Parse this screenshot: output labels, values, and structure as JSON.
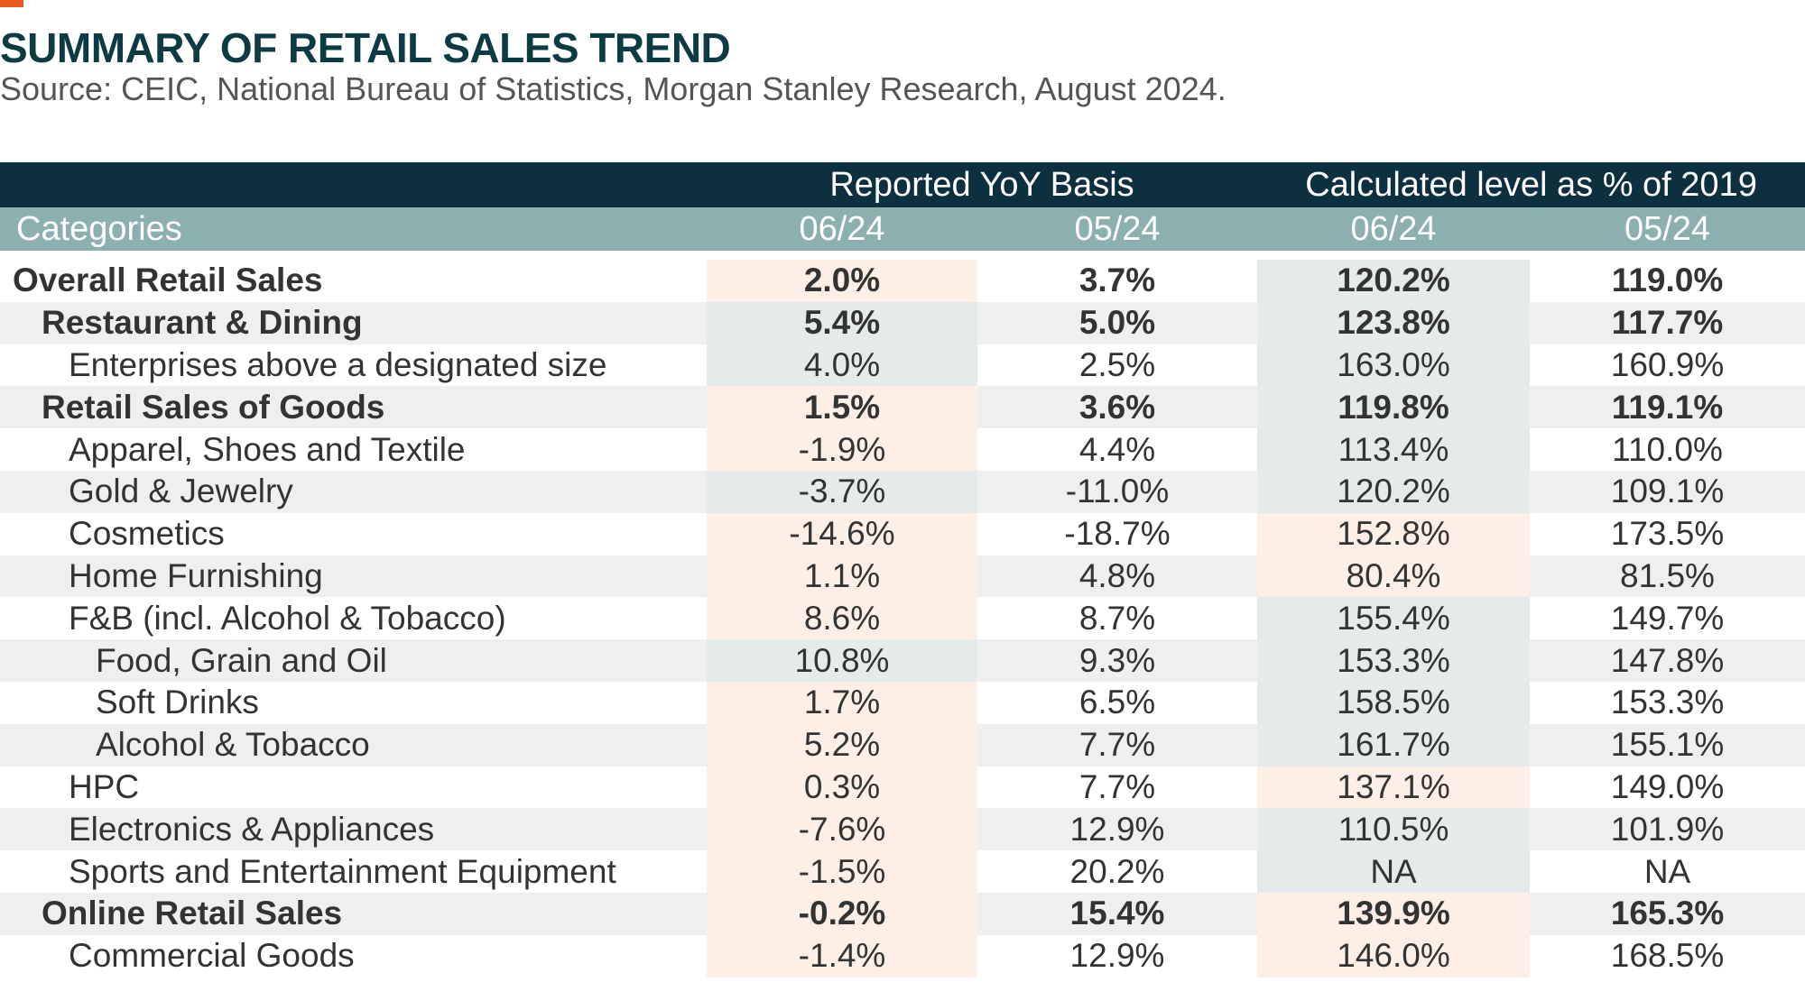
{
  "header": {
    "title": "SUMMARY OF RETAIL SALES TREND",
    "source": "Source: CEIC, National Bureau of Statistics, Morgan Stanley Research, August 2024."
  },
  "colors": {
    "accent": "#ea5a1c",
    "title": "#0d3b44",
    "group_header_bg": "#0d3040",
    "sub_header_bg": "#8cb0b0",
    "highlight_pink": "#fdeee6",
    "highlight_teal": "#e5eaea",
    "stripe": "#efefef"
  },
  "chart_data": {
    "type": "table",
    "title": "SUMMARY OF RETAIL SALES TREND",
    "column_groups": [
      {
        "label": "Reported YoY Basis",
        "columns": [
          "06/24",
          "05/24"
        ]
      },
      {
        "label": "Calculated level as % of 2019",
        "columns": [
          "06/24",
          "05/24"
        ]
      }
    ],
    "row_header_label": "Categories",
    "columns": [
      "06/24",
      "05/24",
      "06/24",
      "05/24"
    ],
    "rows": [
      {
        "label": "Overall Retail Sales",
        "level": 0,
        "bold": true,
        "values": [
          "2.0%",
          "3.7%",
          "120.2%",
          "119.0%"
        ],
        "yoy_shade": "pink",
        "lvl_shade": "teal"
      },
      {
        "label": "Restaurant & Dining",
        "level": 1,
        "bold": true,
        "values": [
          "5.4%",
          "5.0%",
          "123.8%",
          "117.7%"
        ],
        "yoy_shade": "teal",
        "lvl_shade": "teal"
      },
      {
        "label": "Enterprises above a designated size",
        "level": 2,
        "bold": false,
        "values": [
          "4.0%",
          "2.5%",
          "163.0%",
          "160.9%"
        ],
        "yoy_shade": "teal",
        "lvl_shade": "teal"
      },
      {
        "label": "Retail Sales of Goods",
        "level": 1,
        "bold": true,
        "values": [
          "1.5%",
          "3.6%",
          "119.8%",
          "119.1%"
        ],
        "yoy_shade": "pink",
        "lvl_shade": "teal"
      },
      {
        "label": "Apparel, Shoes and Textile",
        "level": 2,
        "bold": false,
        "values": [
          "-1.9%",
          "4.4%",
          "113.4%",
          "110.0%"
        ],
        "yoy_shade": "pink",
        "lvl_shade": "teal"
      },
      {
        "label": "Gold & Jewelry",
        "level": 2,
        "bold": false,
        "values": [
          "-3.7%",
          "-11.0%",
          "120.2%",
          "109.1%"
        ],
        "yoy_shade": "teal",
        "lvl_shade": "teal"
      },
      {
        "label": "Cosmetics",
        "level": 2,
        "bold": false,
        "values": [
          "-14.6%",
          "-18.7%",
          "152.8%",
          "173.5%"
        ],
        "yoy_shade": "pink",
        "lvl_shade": "pink"
      },
      {
        "label": "Home Furnishing",
        "level": 2,
        "bold": false,
        "values": [
          "1.1%",
          "4.8%",
          "80.4%",
          "81.5%"
        ],
        "yoy_shade": "pink",
        "lvl_shade": "pink"
      },
      {
        "label": "F&B (incl. Alcohol & Tobacco)",
        "level": 2,
        "bold": false,
        "values": [
          "8.6%",
          "8.7%",
          "155.4%",
          "149.7%"
        ],
        "yoy_shade": "pink",
        "lvl_shade": "teal"
      },
      {
        "label": "Food, Grain and Oil",
        "level": 3,
        "bold": false,
        "values": [
          "10.8%",
          "9.3%",
          "153.3%",
          "147.8%"
        ],
        "yoy_shade": "teal",
        "lvl_shade": "teal"
      },
      {
        "label": "Soft Drinks",
        "level": 3,
        "bold": false,
        "values": [
          "1.7%",
          "6.5%",
          "158.5%",
          "153.3%"
        ],
        "yoy_shade": "pink",
        "lvl_shade": "teal"
      },
      {
        "label": "Alcohol & Tobacco",
        "level": 3,
        "bold": false,
        "values": [
          "5.2%",
          "7.7%",
          "161.7%",
          "155.1%"
        ],
        "yoy_shade": "pink",
        "lvl_shade": "teal"
      },
      {
        "label": "HPC",
        "level": 2,
        "bold": false,
        "values": [
          "0.3%",
          "7.7%",
          "137.1%",
          "149.0%"
        ],
        "yoy_shade": "pink",
        "lvl_shade": "pink"
      },
      {
        "label": "Electronics & Appliances",
        "level": 2,
        "bold": false,
        "values": [
          "-7.6%",
          "12.9%",
          "110.5%",
          "101.9%"
        ],
        "yoy_shade": "pink",
        "lvl_shade": "teal"
      },
      {
        "label": "Sports and Entertainment Equipment",
        "level": 2,
        "bold": false,
        "values": [
          "-1.5%",
          "20.2%",
          "NA",
          "NA"
        ],
        "yoy_shade": "pink",
        "lvl_shade": "teal"
      },
      {
        "label": "Online Retail Sales",
        "level": 1,
        "bold": true,
        "values": [
          "-0.2%",
          "15.4%",
          "139.9%",
          "165.3%"
        ],
        "yoy_shade": "pink",
        "lvl_shade": "pink"
      },
      {
        "label": "Commercial Goods",
        "level": 2,
        "bold": false,
        "values": [
          "-1.4%",
          "12.9%",
          "146.0%",
          "168.5%"
        ],
        "yoy_shade": "pink",
        "lvl_shade": "pink"
      }
    ]
  }
}
